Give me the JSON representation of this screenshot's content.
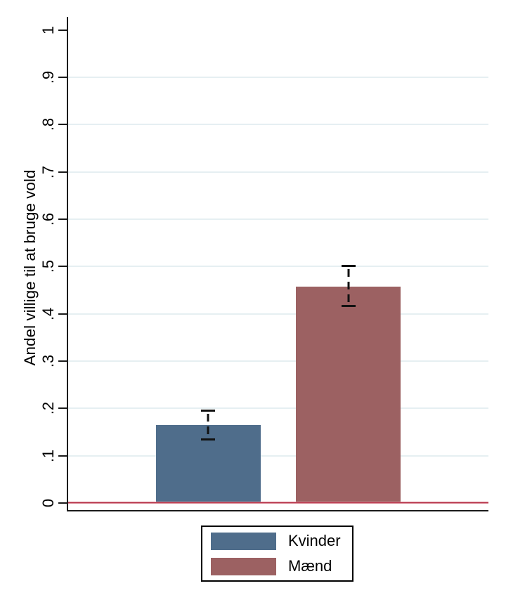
{
  "chart_data": {
    "type": "bar",
    "title": "",
    "xlabel": "",
    "ylabel": "Andel villige til at bruge vold",
    "categories": [
      "Kvinder",
      "Mænd"
    ],
    "values": [
      0.165,
      0.458
    ],
    "error_bars": [
      {
        "low": 0.132,
        "high": 0.197
      },
      {
        "low": 0.415,
        "high": 0.503
      }
    ],
    "bar_colors": [
      "#4f6d8b",
      "#9c6162"
    ],
    "ylim": [
      0,
      1.03
    ],
    "yticks": [
      0,
      0.1,
      0.2,
      0.3,
      0.4,
      0.5,
      0.6,
      0.7,
      0.8,
      0.9,
      1
    ],
    "ytick_labels": [
      "0",
      ".1",
      ".2",
      ".3",
      ".4",
      ".5",
      ".6",
      ".7",
      ".8",
      ".9",
      "1"
    ],
    "grid": "on",
    "grid_ticks": [
      0.1,
      0.2,
      0.3,
      0.4,
      0.5,
      0.6,
      0.7,
      0.8,
      0.9
    ],
    "gridline_color": "#e6eff2",
    "zero_line_color": "#b63449",
    "axis_color": "#1a1a1a",
    "background_color": "#ffffff",
    "legend": {
      "position": "bottom",
      "entries": [
        {
          "label": "Kvinder",
          "color": "#4f6d8b"
        },
        {
          "label": "Mænd",
          "color": "#9c6162"
        }
      ]
    }
  }
}
